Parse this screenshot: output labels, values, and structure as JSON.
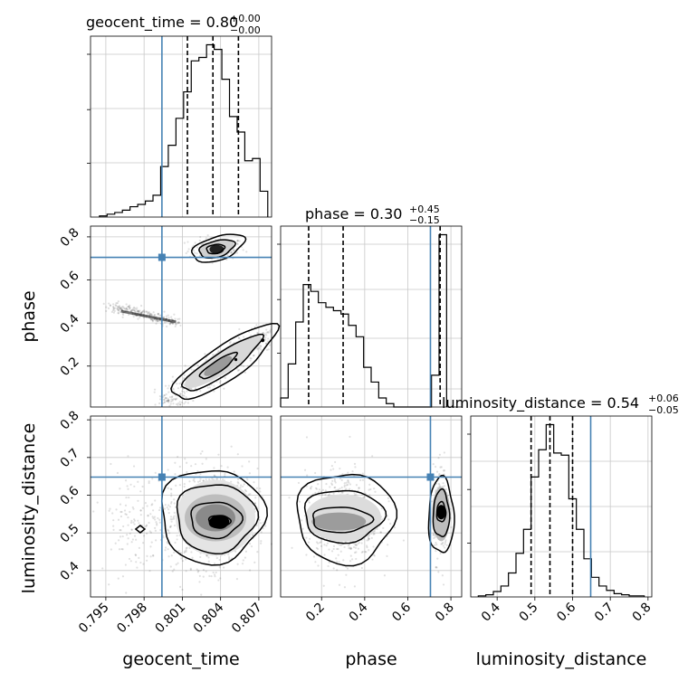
{
  "chart_data": {
    "type": "corner",
    "parameters": [
      "geocent_time",
      "phase",
      "luminosity_distance"
    ],
    "axis_labels": {
      "geocent_time": "geocent_time",
      "phase": "phase",
      "luminosity_distance": "luminosity_distance"
    },
    "ranges": {
      "geocent_time": [
        0.7938,
        0.808
      ],
      "phase": [
        0.01,
        0.85
      ],
      "luminosity_distance": [
        0.33,
        0.81
      ]
    },
    "ticks": {
      "geocent_time": [
        "0.795",
        "0.798",
        "0.801",
        "0.804",
        "0.807"
      ],
      "phase": [
        "0.2",
        "0.4",
        "0.6",
        "0.8"
      ],
      "luminosity_distance": [
        "0.4",
        "0.5",
        "0.6",
        "0.7",
        "0.8"
      ]
    },
    "titles": {
      "geocent_time": {
        "name": "geocent_time",
        "value": "0.80",
        "plus": "+0.00",
        "minus": "−0.00"
      },
      "phase": {
        "name": "phase",
        "value": "0.30",
        "plus": "+0.45",
        "minus": "−0.15"
      },
      "luminosity_distance": {
        "name": "luminosity_distance",
        "value": "0.54",
        "plus": "+0.06",
        "minus": "−0.05"
      }
    },
    "truths": {
      "geocent_time": 0.7994,
      "phase": 0.705,
      "luminosity_distance": 0.648
    },
    "quantiles": {
      "geocent_time": [
        0.8014,
        0.8034,
        0.8054
      ],
      "phase": [
        0.14,
        0.3,
        0.75
      ],
      "luminosity_distance": [
        0.49,
        0.54,
        0.6
      ]
    },
    "histograms": {
      "geocent_time": {
        "edges": [
          0.7945,
          0.7951,
          0.7957,
          0.7963,
          0.7969,
          0.7975,
          0.7981,
          0.7987,
          0.7993,
          0.7999,
          0.8005,
          0.8011,
          0.8017,
          0.8023,
          0.8029,
          0.8035,
          0.8041,
          0.8047,
          0.8053,
          0.8059,
          0.8065,
          0.8071,
          0.8077
        ],
        "counts": [
          2,
          5,
          8,
          12,
          18,
          22,
          28,
          38,
          88,
          125,
          172,
          218,
          272,
          278,
          300,
          292,
          240,
          175,
          148,
          98,
          102,
          45
        ]
      },
      "phase": {
        "edges": [
          0.01,
          0.045,
          0.08,
          0.115,
          0.15,
          0.185,
          0.22,
          0.255,
          0.29,
          0.325,
          0.36,
          0.395,
          0.43,
          0.465,
          0.5,
          0.535,
          0.57,
          0.605,
          0.64,
          0.675,
          0.71,
          0.745,
          0.78
        ],
        "counts": [
          8,
          38,
          75,
          108,
          102,
          92,
          88,
          85,
          82,
          72,
          62,
          35,
          22,
          8,
          3,
          0,
          0,
          0,
          0,
          0,
          28,
          152
        ]
      },
      "luminosity_distance": {
        "edges": [
          0.35,
          0.37,
          0.39,
          0.41,
          0.43,
          0.45,
          0.47,
          0.49,
          0.51,
          0.53,
          0.55,
          0.57,
          0.59,
          0.61,
          0.63,
          0.65,
          0.67,
          0.69,
          0.71,
          0.73,
          0.75,
          0.77,
          0.79
        ],
        "counts": [
          1,
          2,
          5,
          10,
          22,
          40,
          62,
          110,
          135,
          158,
          132,
          130,
          90,
          62,
          35,
          18,
          10,
          6,
          3,
          2,
          1,
          1
        ]
      }
    },
    "grid": true,
    "style": {
      "truth_color": "#4682b4",
      "contour_color": "#000000",
      "hist_color": "#000000"
    }
  }
}
